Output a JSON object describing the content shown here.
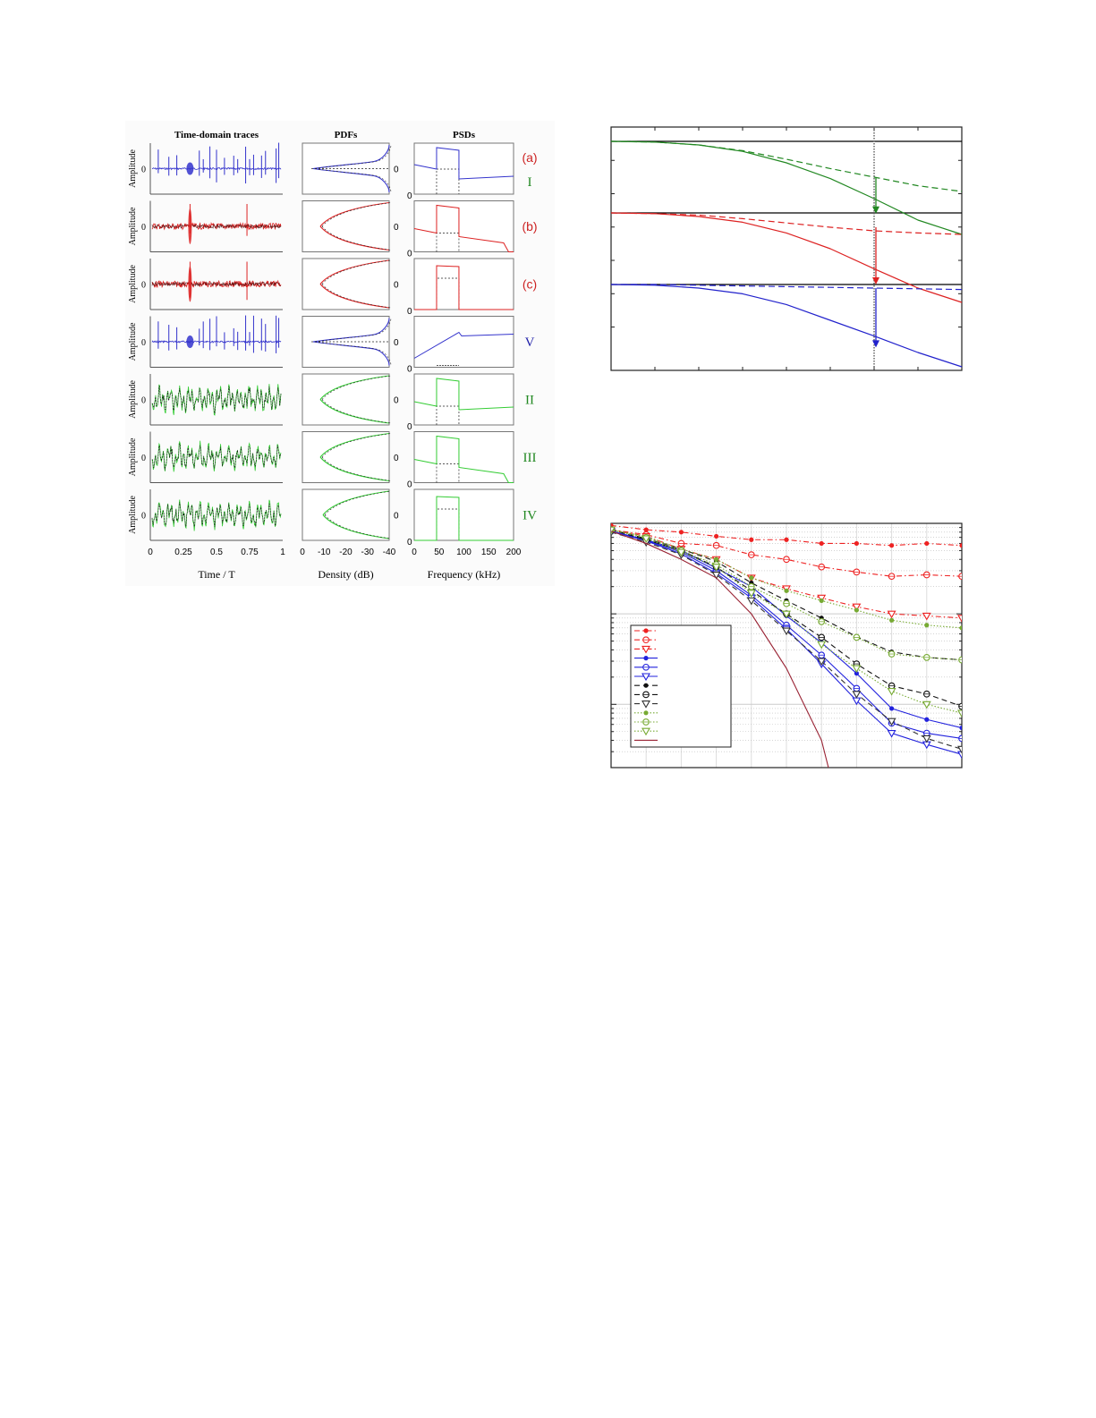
{
  "chart_data": [
    {
      "id": "signal-grid",
      "type": "line",
      "title": "",
      "columns": [
        {
          "title": "Time-domain traces",
          "xlabel": "Time / T",
          "xticks": [
            "0",
            "0.25",
            "0.5",
            "0.75",
            "1"
          ],
          "ylabel": "Amplitude",
          "ytick": "0"
        },
        {
          "title": "PDFs",
          "xlabel": "Density (dB)",
          "xticks": [
            "0",
            "-10",
            "-20",
            "-30",
            "-40"
          ],
          "ytick": "0"
        },
        {
          "title": "PSDs",
          "xlabel": "Frequency (kHz)",
          "xticks": [
            "0",
            "50",
            "100",
            "150",
            "200"
          ],
          "ytick": "0"
        }
      ],
      "rows": [
        {
          "label": "(a)",
          "sublabel": "I",
          "color": "#3333cc",
          "label_color": "#cc2222",
          "sublabel_color": "#228822"
        },
        {
          "label": "(b)",
          "sublabel": "",
          "color": "#dd2222",
          "label_color": "#cc2222"
        },
        {
          "label": "(c)",
          "sublabel": "",
          "color": "#dd2222",
          "label_color": "#cc2222"
        },
        {
          "label": "V",
          "sublabel": "",
          "color": "#3333cc",
          "label_color": "#2222aa"
        },
        {
          "label": "II",
          "sublabel": "",
          "color": "#33cc33",
          "label_color": "#228822"
        },
        {
          "label": "III",
          "sublabel": "",
          "color": "#33cc33",
          "label_color": "#228822"
        },
        {
          "label": "IV",
          "sublabel": "",
          "color": "#33cc33",
          "label_color": "#228822"
        }
      ],
      "psd_band_khz": [
        45,
        90
      ],
      "xlim_time": [
        0,
        1
      ],
      "xlim_density_db": [
        0,
        -40
      ],
      "xlim_freq_khz": [
        0,
        200
      ]
    },
    {
      "id": "decay-curves",
      "type": "line",
      "title": "",
      "xlabel": "",
      "ylabel": "",
      "grid": false,
      "series": [
        {
          "name": "green-solid",
          "color": "#228822",
          "style": "solid",
          "y": [
            0.0,
            -0.01,
            -0.05,
            -0.14,
            -0.3,
            -0.52,
            -0.8,
            -1.1,
            -1.3
          ]
        },
        {
          "name": "green-dashed",
          "color": "#228822",
          "style": "dashed",
          "y": [
            0.0,
            -0.01,
            -0.05,
            -0.13,
            -0.25,
            -0.38,
            -0.5,
            -0.62,
            -0.7
          ]
        },
        {
          "name": "red-solid",
          "color": "#dd2222",
          "style": "solid",
          "y": [
            -1.0,
            -1.01,
            -1.05,
            -1.13,
            -1.28,
            -1.5,
            -1.78,
            -2.05,
            -2.25
          ]
        },
        {
          "name": "red-dashed",
          "color": "#dd2222",
          "style": "dashed",
          "y": [
            -1.0,
            -1.01,
            -1.03,
            -1.08,
            -1.14,
            -1.2,
            -1.25,
            -1.28,
            -1.3
          ]
        },
        {
          "name": "blue-solid",
          "color": "#2222cc",
          "style": "solid",
          "y": [
            -2.0,
            -2.01,
            -2.05,
            -2.13,
            -2.28,
            -2.5,
            -2.72,
            -2.95,
            -3.15
          ]
        },
        {
          "name": "blue-dashed",
          "color": "#2222cc",
          "style": "dashed",
          "y": [
            -2.0,
            -2.0,
            -2.01,
            -2.02,
            -2.03,
            -2.04,
            -2.05,
            -2.06,
            -2.07
          ]
        }
      ],
      "reference_lines_y": [
        0,
        -1,
        -2
      ],
      "marker_x": 6,
      "arrows": [
        {
          "color": "#228822",
          "from": -0.51,
          "to": -1.01
        },
        {
          "color": "#dd2222",
          "from": -1.2,
          "to": -2.0
        },
        {
          "color": "#2222cc",
          "from": -2.05,
          "to": -2.88
        }
      ],
      "xlim": [
        0,
        8
      ],
      "ylim": [
        -3.2,
        0.2
      ]
    },
    {
      "id": "error-rate-curves",
      "type": "line",
      "title": "",
      "xlabel": "",
      "ylabel": "",
      "yscale": "log",
      "grid": true,
      "x": [
        0,
        1,
        2,
        3,
        4,
        5,
        6,
        7,
        8,
        9,
        10
      ],
      "series": [
        {
          "name": "red-star-dashdot",
          "color": "#ee2222",
          "marker": "star",
          "style": "dashdot",
          "y": [
            0.95,
            0.85,
            0.8,
            0.72,
            0.66,
            0.66,
            0.6,
            0.6,
            0.57,
            0.6,
            0.57
          ]
        },
        {
          "name": "red-circle-dashdot",
          "color": "#ee2222",
          "marker": "circle",
          "style": "dashdot",
          "y": [
            0.85,
            0.75,
            0.6,
            0.57,
            0.45,
            0.4,
            0.33,
            0.29,
            0.26,
            0.27,
            0.26
          ]
        },
        {
          "name": "red-triangle-dashdot",
          "color": "#ee2222",
          "marker": "triangle",
          "style": "dashdot",
          "y": [
            0.85,
            0.72,
            0.52,
            0.4,
            0.25,
            0.19,
            0.15,
            0.12,
            0.1,
            0.095,
            0.09
          ]
        },
        {
          "name": "blue-star-solid",
          "color": "#2222dd",
          "marker": "star",
          "style": "solid",
          "y": [
            0.82,
            0.66,
            0.5,
            0.32,
            0.2,
            0.095,
            0.048,
            0.022,
            0.009,
            0.0068,
            0.0055
          ]
        },
        {
          "name": "blue-circle-solid",
          "color": "#2222dd",
          "marker": "circle",
          "style": "solid",
          "y": [
            0.82,
            0.65,
            0.48,
            0.3,
            0.16,
            0.075,
            0.035,
            0.015,
            0.0062,
            0.0048,
            0.0042
          ]
        },
        {
          "name": "blue-triangle-solid",
          "color": "#2222dd",
          "marker": "triangle",
          "style": "solid",
          "y": [
            0.82,
            0.64,
            0.46,
            0.28,
            0.15,
            0.068,
            0.028,
            0.011,
            0.0048,
            0.0036,
            0.0028
          ]
        },
        {
          "name": "black-star-dashed",
          "color": "#111111",
          "marker": "star",
          "style": "dashed",
          "y": [
            0.85,
            0.68,
            0.52,
            0.38,
            0.22,
            0.14,
            0.09,
            0.056,
            0.038,
            0.033,
            0.031
          ]
        },
        {
          "name": "black-circle-dashed",
          "color": "#111111",
          "marker": "circle",
          "style": "dashed",
          "y": [
            0.85,
            0.66,
            0.5,
            0.33,
            0.18,
            0.1,
            0.055,
            0.028,
            0.016,
            0.013,
            0.0095
          ]
        },
        {
          "name": "black-triangle-dashed",
          "color": "#333333",
          "marker": "triangle",
          "style": "dashed",
          "y": [
            0.8,
            0.62,
            0.45,
            0.27,
            0.14,
            0.065,
            0.03,
            0.013,
            0.0065,
            0.0042,
            0.0032
          ]
        },
        {
          "name": "olive-star-dotted",
          "color": "#77aa33",
          "marker": "star",
          "style": "dotted",
          "y": [
            0.85,
            0.72,
            0.52,
            0.4,
            0.25,
            0.18,
            0.14,
            0.11,
            0.085,
            0.075,
            0.07
          ]
        },
        {
          "name": "olive-circle-dotted",
          "color": "#77aa33",
          "marker": "circle",
          "style": "dotted",
          "y": [
            0.85,
            0.7,
            0.5,
            0.35,
            0.2,
            0.13,
            0.082,
            0.055,
            0.036,
            0.033,
            0.031
          ]
        },
        {
          "name": "olive-triangle-dotted",
          "color": "#77aa33",
          "marker": "triangle",
          "style": "dotted",
          "y": [
            0.85,
            0.68,
            0.48,
            0.33,
            0.17,
            0.1,
            0.046,
            0.025,
            0.014,
            0.01,
            0.008
          ]
        },
        {
          "name": "maroon-solid",
          "color": "#992233",
          "marker": "none",
          "style": "solid",
          "y": [
            0.82,
            0.6,
            0.4,
            0.25,
            0.1,
            0.025,
            0.004,
            0.00012,
            null,
            null,
            null
          ]
        }
      ],
      "legend": {
        "position": "lower-left",
        "entries": 13
      },
      "xlim": [
        0,
        10
      ],
      "ylim": [
        0.002,
        1
      ]
    }
  ]
}
